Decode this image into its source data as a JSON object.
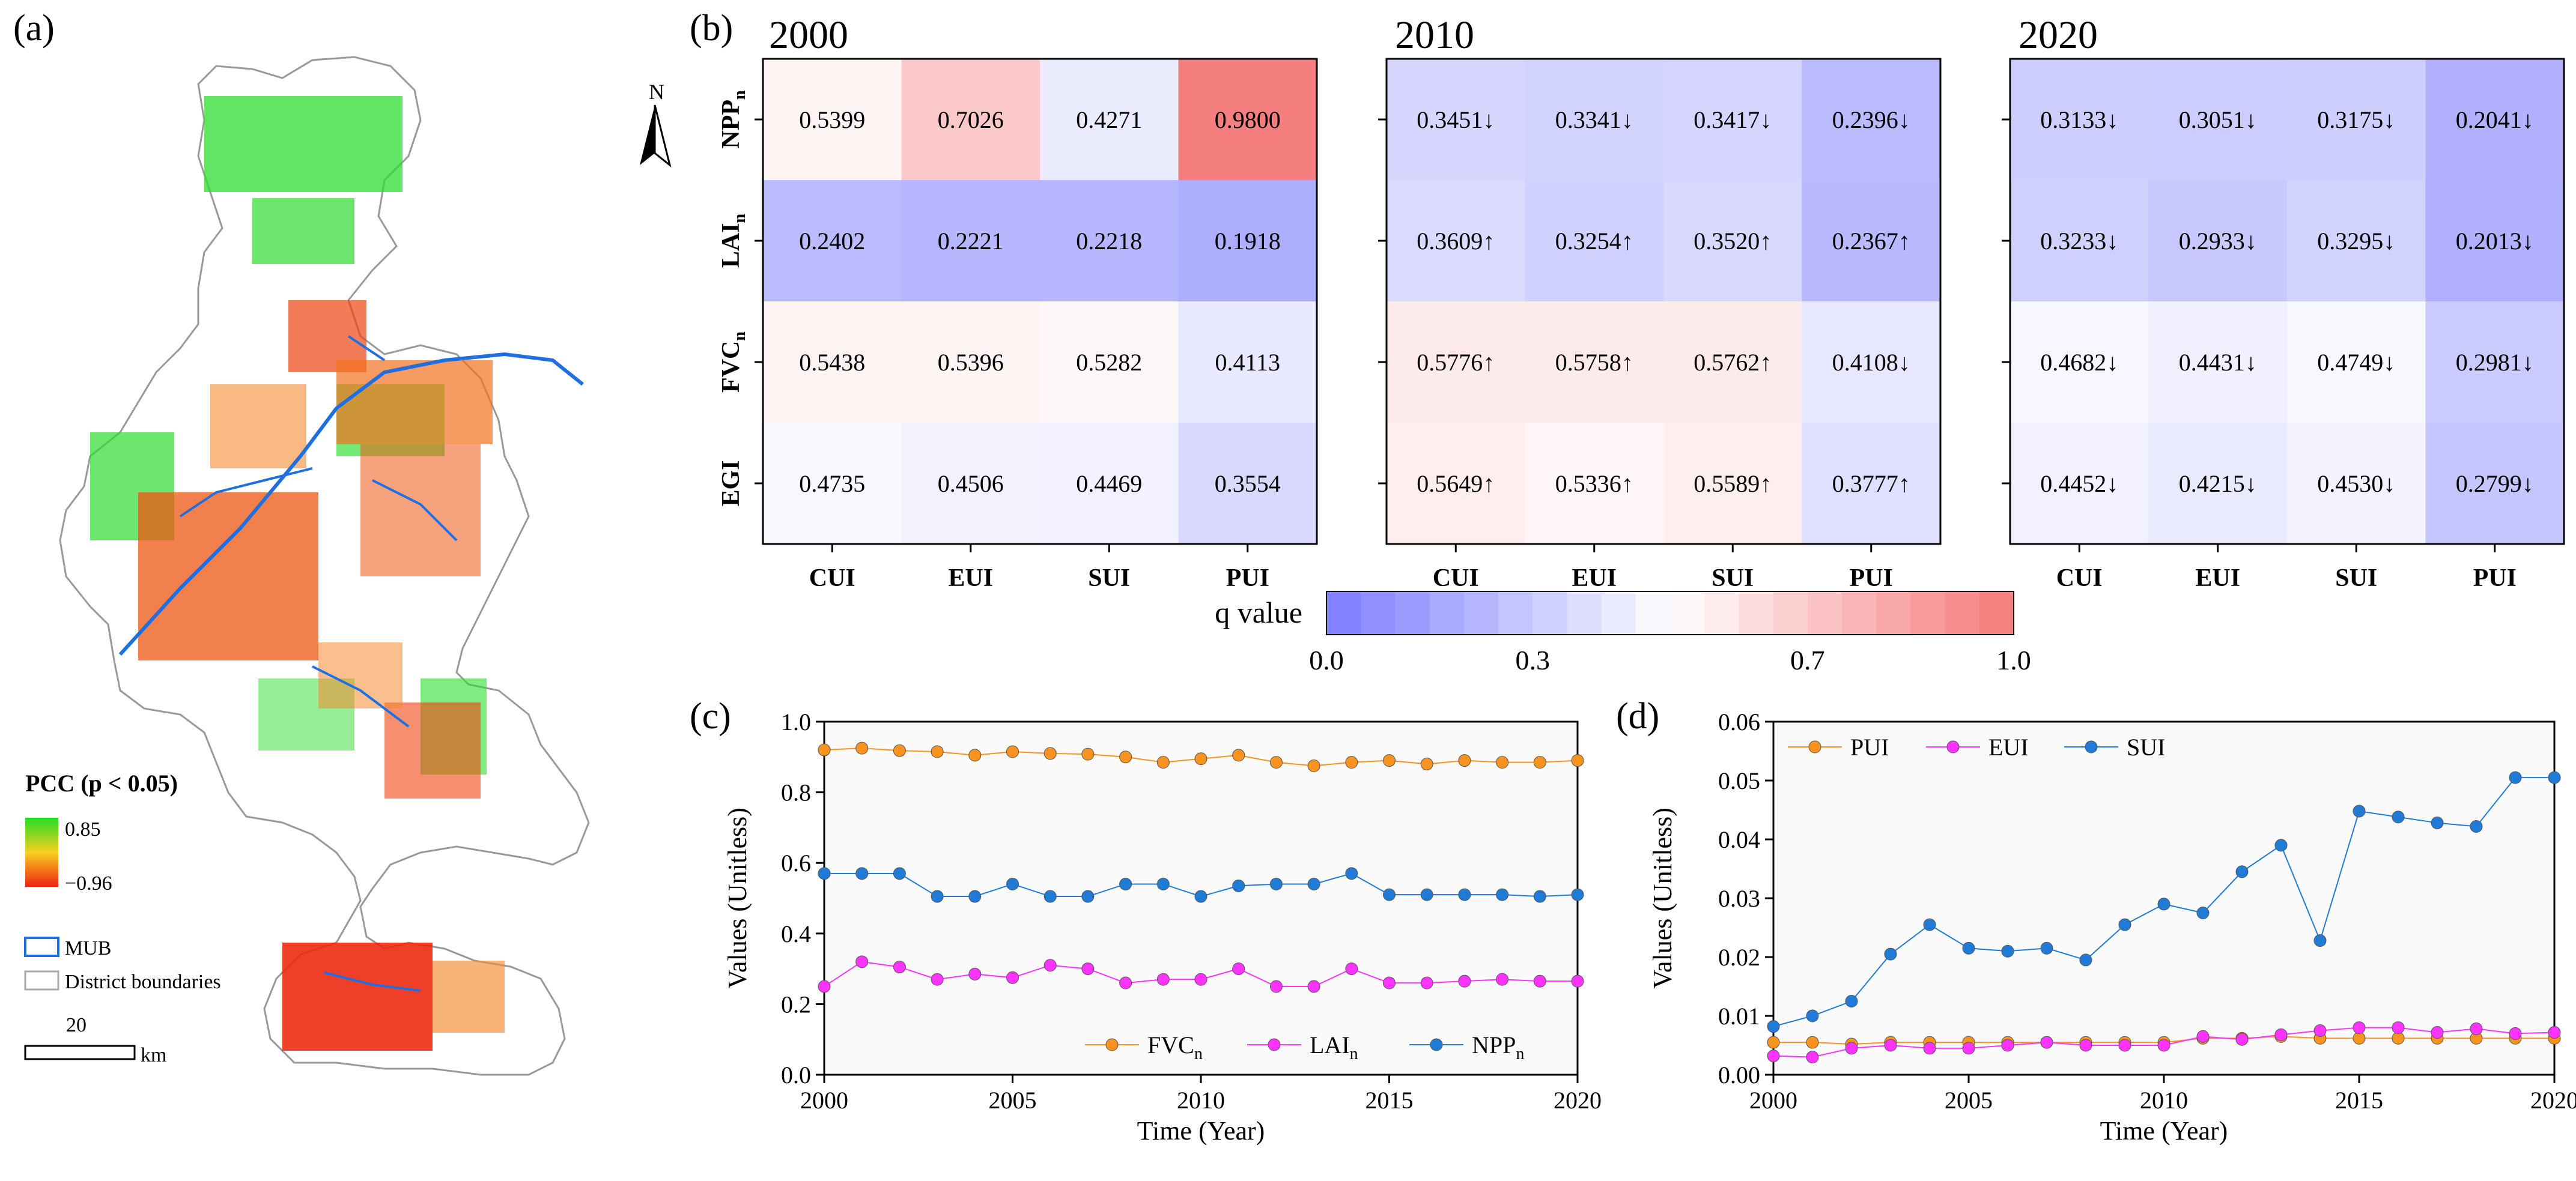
{
  "panel_labels": {
    "a": "(a)",
    "b": "(b)",
    "c": "(c)",
    "d": "(d)"
  },
  "map": {
    "north_label": "N",
    "legend_title": "PCC (p < 0.05)",
    "legend_max": "0.85",
    "legend_min": "−0.96",
    "mub_label": "MUB",
    "district_label": "District boundaries",
    "scale_value": "20",
    "scale_unit": "km",
    "colors": {
      "positive": "#22dd22",
      "negative": "#ee2211",
      "mid": "#f7a020",
      "mub": "#1f6fe0",
      "boundary": "#aaaaaa"
    }
  },
  "heatmaps": {
    "rows": [
      "NPPn",
      "LAIn",
      "FVCn",
      "EGI"
    ],
    "row_base": [
      "NPP",
      "LAI",
      "FVC",
      "EGI"
    ],
    "row_sub": [
      "n",
      "n",
      "n",
      ""
    ],
    "cols": [
      "CUI",
      "EUI",
      "SUI",
      "PUI"
    ],
    "panels": [
      {
        "year": "2000",
        "cells": [
          [
            "0.5399",
            "0.7026",
            "0.4271",
            "0.9800"
          ],
          [
            "0.2402",
            "0.2221",
            "0.2218",
            "0.1918"
          ],
          [
            "0.5438",
            "0.5396",
            "0.5282",
            "0.4113"
          ],
          [
            "0.4735",
            "0.4506",
            "0.4469",
            "0.3554"
          ]
        ],
        "values": [
          [
            0.5399,
            0.7026,
            0.4271,
            0.98
          ],
          [
            0.2402,
            0.2221,
            0.2218,
            0.1918
          ],
          [
            0.5438,
            0.5396,
            0.5282,
            0.4113
          ],
          [
            0.4735,
            0.4506,
            0.4469,
            0.3554
          ]
        ]
      },
      {
        "year": "2010",
        "cells": [
          [
            "0.3451↓",
            "0.3341↓",
            "0.3417↓",
            "0.2396↓"
          ],
          [
            "0.3609↑",
            "0.3254↑",
            "0.3520↑",
            "0.2367↑"
          ],
          [
            "0.5776↑",
            "0.5758↑",
            "0.5762↑",
            "0.4108↓"
          ],
          [
            "0.5649↑",
            "0.5336↑",
            "0.5589↑",
            "0.3777↑"
          ]
        ],
        "values": [
          [
            0.3451,
            0.3341,
            0.3417,
            0.2396
          ],
          [
            0.3609,
            0.3254,
            0.352,
            0.2367
          ],
          [
            0.5776,
            0.5758,
            0.5762,
            0.4108
          ],
          [
            0.5649,
            0.5336,
            0.5589,
            0.3777
          ]
        ]
      },
      {
        "year": "2020",
        "cells": [
          [
            "0.3133↓",
            "0.3051↓",
            "0.3175↓",
            "0.2041↓"
          ],
          [
            "0.3233↓",
            "0.2933↓",
            "0.3295↓",
            "0.2013↓"
          ],
          [
            "0.4682↓",
            "0.4431↓",
            "0.4749↓",
            "0.2981↓"
          ],
          [
            "0.4452↓",
            "0.4215↓",
            "0.4530↓",
            "0.2799↓"
          ]
        ],
        "values": [
          [
            0.3133,
            0.3051,
            0.3175,
            0.2041
          ],
          [
            0.3233,
            0.2933,
            0.3295,
            0.2013
          ],
          [
            0.4682,
            0.4431,
            0.4749,
            0.2981
          ],
          [
            0.4452,
            0.4215,
            0.453,
            0.2799
          ]
        ]
      }
    ],
    "colorbar": {
      "label": "q value",
      "ticks": [
        "0.0",
        "0.3",
        "0.7",
        "1.0"
      ],
      "tick_values": [
        0,
        0.3,
        0.7,
        1.0
      ],
      "low_color": "#7b7bff",
      "mid_color": "#ffffff",
      "high_color": "#f57a7a"
    }
  },
  "chart_data": [
    {
      "type": "line",
      "panel": "(c)",
      "xlabel": "Time (Year)",
      "ylabel": "Values (Unitless)",
      "xlim": [
        2000,
        2020
      ],
      "ylim": [
        0,
        1.0
      ],
      "xticks": [
        "2000",
        "2005",
        "2010",
        "2015",
        "2020"
      ],
      "yticks": [
        "0.0",
        "0.2",
        "0.4",
        "0.6",
        "0.8",
        "1.0"
      ],
      "x": [
        2000,
        2001,
        2002,
        2003,
        2004,
        2005,
        2006,
        2007,
        2008,
        2009,
        2010,
        2011,
        2012,
        2013,
        2014,
        2015,
        2016,
        2017,
        2018,
        2019,
        2020
      ],
      "legend": "bottom-right",
      "series": [
        {
          "name": "FVC",
          "sub": "n",
          "color": "#f7931e",
          "values": [
            0.92,
            0.925,
            0.918,
            0.915,
            0.905,
            0.915,
            0.91,
            0.908,
            0.9,
            0.885,
            0.895,
            0.905,
            0.885,
            0.875,
            0.885,
            0.89,
            0.88,
            0.89,
            0.885,
            0.885,
            0.89
          ]
        },
        {
          "name": "LAI",
          "sub": "n",
          "color": "#ff33ff",
          "values": [
            0.25,
            0.32,
            0.305,
            0.27,
            0.285,
            0.275,
            0.31,
            0.3,
            0.26,
            0.27,
            0.27,
            0.3,
            0.25,
            0.25,
            0.3,
            0.26,
            0.26,
            0.265,
            0.27,
            0.265,
            0.265
          ]
        },
        {
          "name": "NPP",
          "sub": "n",
          "color": "#1f7bd6",
          "values": [
            0.57,
            0.57,
            0.57,
            0.505,
            0.505,
            0.54,
            0.505,
            0.505,
            0.54,
            0.54,
            0.505,
            0.535,
            0.54,
            0.54,
            0.57,
            0.51,
            0.51,
            0.51,
            0.51,
            0.505,
            0.51
          ]
        }
      ]
    },
    {
      "type": "line",
      "panel": "(d)",
      "xlabel": "Time (Year)",
      "ylabel": "Values (Unitless)",
      "xlim": [
        2000,
        2020
      ],
      "ylim": [
        0,
        0.06
      ],
      "xticks": [
        "2000",
        "2005",
        "2010",
        "2015",
        "2020"
      ],
      "yticks": [
        "0.00",
        "0.01",
        "0.02",
        "0.03",
        "0.04",
        "0.05",
        "0.06"
      ],
      "x": [
        2000,
        2001,
        2002,
        2003,
        2004,
        2005,
        2006,
        2007,
        2008,
        2009,
        2010,
        2011,
        2012,
        2013,
        2014,
        2015,
        2016,
        2017,
        2018,
        2019,
        2020
      ],
      "legend": "top-left",
      "series": [
        {
          "name": "PUI",
          "sub": "",
          "color": "#f7931e",
          "values": [
            0.0055,
            0.0055,
            0.0052,
            0.0055,
            0.0055,
            0.0055,
            0.0055,
            0.0055,
            0.0055,
            0.0055,
            0.0055,
            0.0062,
            0.0062,
            0.0065,
            0.0062,
            0.0062,
            0.0062,
            0.0062,
            0.0062,
            0.0062,
            0.0062
          ]
        },
        {
          "name": "EUI",
          "sub": "",
          "color": "#ff33ff",
          "values": [
            0.0032,
            0.003,
            0.0045,
            0.005,
            0.0045,
            0.0045,
            0.005,
            0.0055,
            0.005,
            0.005,
            0.005,
            0.0065,
            0.006,
            0.0068,
            0.0075,
            0.008,
            0.008,
            0.0072,
            0.0078,
            0.007,
            0.0072
          ]
        },
        {
          "name": "SUI",
          "sub": "",
          "color": "#1f7bd6",
          "values": [
            0.0082,
            0.01,
            0.0125,
            0.0205,
            0.0255,
            0.0215,
            0.021,
            0.0215,
            0.0195,
            0.0255,
            0.029,
            0.0275,
            0.0345,
            0.039,
            0.0228,
            0.0448,
            0.0438,
            0.0428,
            0.0422,
            0.0505,
            0.0505
          ]
        }
      ]
    }
  ]
}
